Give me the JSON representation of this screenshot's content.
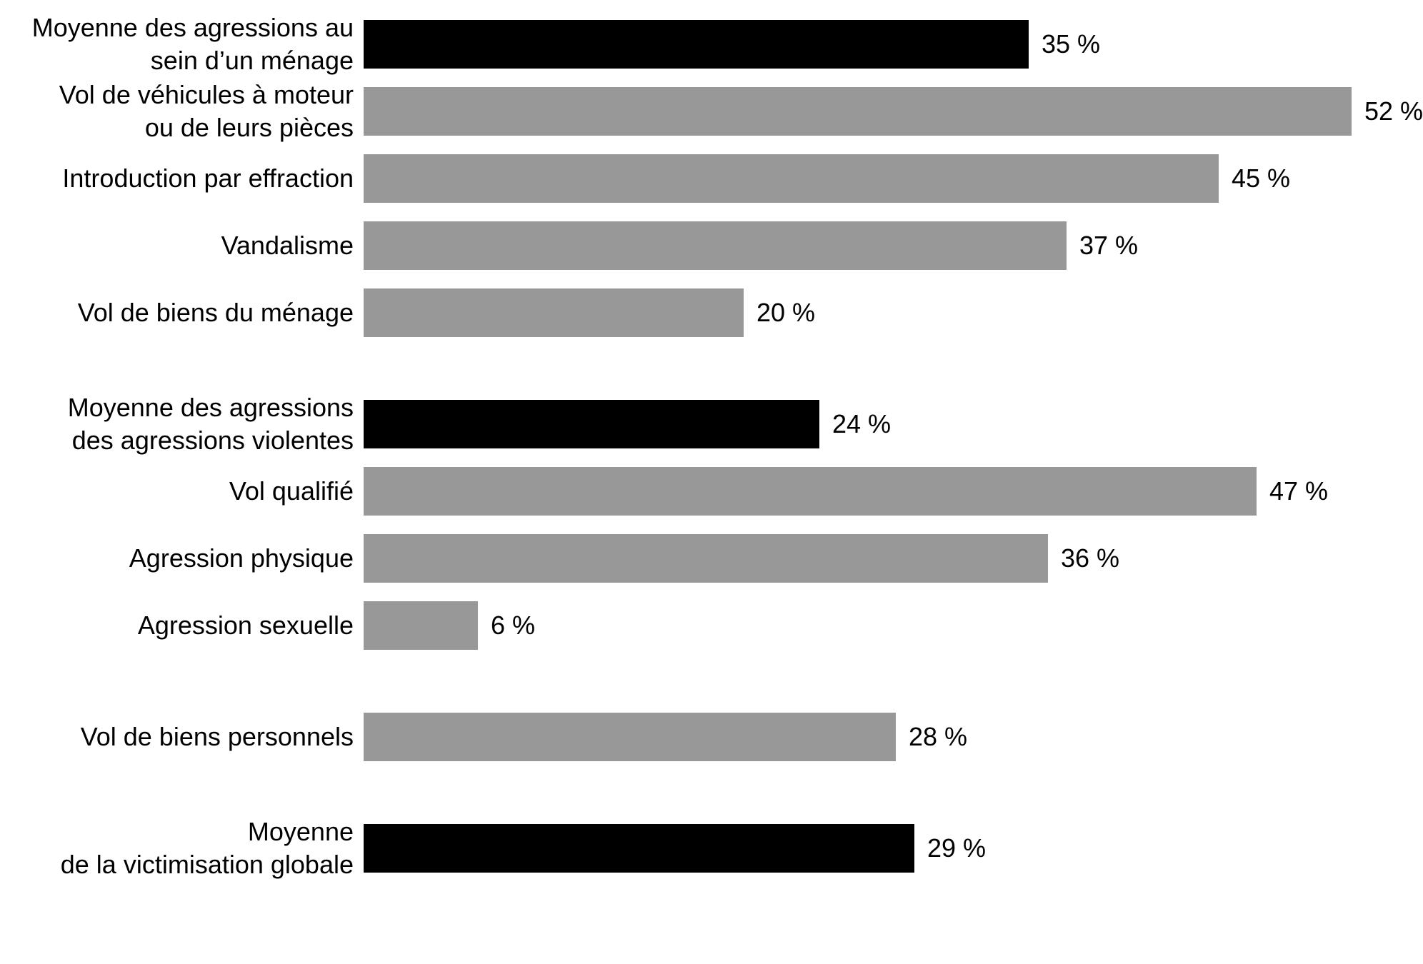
{
  "chart_data": {
    "type": "bar",
    "orientation": "horizontal",
    "unit": "%",
    "title": "",
    "xlabel": "",
    "ylabel": "",
    "xlim": [
      0,
      55
    ],
    "grid": false,
    "legend": false,
    "colors": {
      "average_bar": "#000000",
      "category_bar": "#989898",
      "text": "#000000",
      "background": "#ffffff"
    },
    "rows": [
      {
        "label": "Moyenne des agressions au\nsein d’un ménage",
        "value": 35,
        "value_label": "35 %",
        "color": "black",
        "group_start": false
      },
      {
        "label": "Vol de véhicules à moteur\nou de leurs pièces",
        "value": 52,
        "value_label": "52 %",
        "color": "gray",
        "group_start": false
      },
      {
        "label": "Introduction par effraction",
        "value": 45,
        "value_label": "45 %",
        "color": "gray",
        "group_start": false
      },
      {
        "label": "Vandalisme",
        "value": 37,
        "value_label": "37 %",
        "color": "gray",
        "group_start": false
      },
      {
        "label": "Vol de biens du ménage",
        "value": 20,
        "value_label": "20 %",
        "color": "gray",
        "group_start": false
      },
      {
        "label": "Moyenne des agressions\ndes agressions violentes",
        "value": 24,
        "value_label": "24 %",
        "color": "black",
        "group_start": true
      },
      {
        "label": "Vol qualifié",
        "value": 47,
        "value_label": "47 %",
        "color": "gray",
        "group_start": false
      },
      {
        "label": "Agression physique",
        "value": 36,
        "value_label": "36 %",
        "color": "gray",
        "group_start": false
      },
      {
        "label": "Agression sexuelle",
        "value": 6,
        "value_label": "6 %",
        "color": "gray",
        "group_start": false
      },
      {
        "label": "Vol de biens personnels",
        "value": 28,
        "value_label": "28 %",
        "color": "gray",
        "group_start": true
      },
      {
        "label": "Moyenne\nde la victimisation globale",
        "value": 29,
        "value_label": "29 %",
        "color": "black",
        "group_start": true
      }
    ]
  }
}
